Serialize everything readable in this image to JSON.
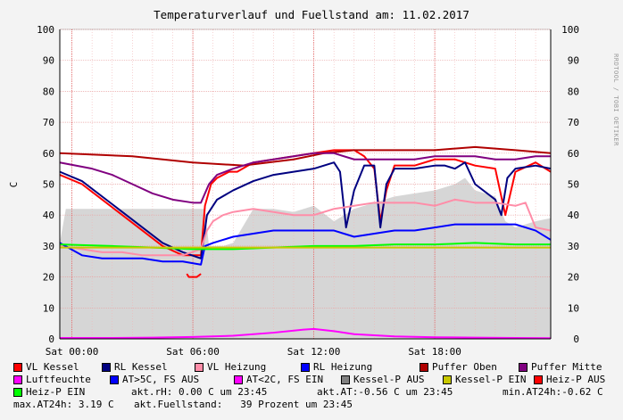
{
  "chart_data": {
    "type": "line",
    "title": "Temperaturverlauf und Fuellstand am: 11.02.2017",
    "ylabel": "C",
    "watermark": "RRDTOOL / TOBI OETIKER",
    "ylim": [
      0,
      100
    ],
    "yticks": [
      0,
      10,
      20,
      30,
      40,
      50,
      60,
      70,
      80,
      90,
      100
    ],
    "xlim": [
      -0.6,
      23.75
    ],
    "xticks": [
      {
        "label": "Sat 00:00",
        "h": 0
      },
      {
        "label": "Sat 06:00",
        "h": 6
      },
      {
        "label": "Sat 12:00",
        "h": 12
      },
      {
        "label": "Sat 18:00",
        "h": 18
      }
    ],
    "grid": true,
    "legend_position": "bottom",
    "area_series": {
      "name": "Fuellstand",
      "color": "#d6d6d6",
      "x": [
        -0.6,
        -0.3,
        5,
        6.6,
        6.8,
        7.5,
        8,
        9,
        10,
        11,
        12,
        13,
        14,
        15,
        16,
        17,
        18,
        19,
        19.5,
        20,
        21,
        21.5,
        22,
        23,
        23.75
      ],
      "y": [
        31,
        42,
        42,
        42,
        30,
        30,
        31,
        42,
        42,
        41,
        43,
        38,
        42,
        44,
        46,
        47,
        48,
        50,
        52,
        48,
        46,
        38,
        36,
        38,
        39
      ]
    },
    "series": [
      {
        "name": "VL Kessel",
        "color": "#ff0000",
        "x": [
          -0.6,
          0.5,
          1.5,
          2.5,
          3.5,
          4.5,
          5.5,
          6.4,
          6.6,
          6.9,
          7.2,
          7.8,
          8.2,
          9,
          10,
          11,
          12,
          13,
          14,
          14.5,
          15,
          15.3,
          15.6,
          16,
          17,
          18,
          19,
          20,
          21,
          21.5,
          22,
          23,
          23.75
        ],
        "y": [
          53,
          50,
          45,
          40,
          35,
          30,
          27,
          27,
          43,
          50,
          52,
          54,
          54,
          57,
          58,
          59,
          60,
          61,
          61,
          59,
          55,
          38,
          48,
          56,
          56,
          58,
          58,
          56,
          55,
          40,
          54,
          57,
          54
        ]
      },
      {
        "name": "RL Kessel",
        "color": "#000080",
        "x": [
          -0.6,
          0.5,
          1.5,
          2.5,
          3.5,
          4.5,
          5.5,
          6.4,
          6.7,
          7.2,
          8,
          9,
          10,
          11,
          12,
          12.5,
          13,
          13.3,
          13.6,
          14,
          14.5,
          15,
          15.3,
          15.6,
          16,
          17,
          18,
          18.5,
          19,
          19.5,
          20,
          21,
          21.3,
          21.6,
          22,
          23,
          23.75
        ],
        "y": [
          54,
          51,
          46,
          41,
          36,
          31,
          28,
          26,
          40,
          45,
          48,
          51,
          53,
          54,
          55,
          56,
          57,
          54,
          36,
          48,
          56,
          56,
          36,
          50,
          55,
          55,
          56,
          56,
          55,
          57,
          50,
          45,
          40,
          52,
          55,
          56,
          55
        ]
      },
      {
        "name": "VL Heizung",
        "color": "#ff8da8",
        "x": [
          -0.6,
          0.5,
          1.5,
          2.5,
          3.5,
          4.5,
          5.5,
          6.4,
          6.7,
          7,
          7.5,
          8,
          9,
          10,
          11,
          12,
          13,
          14,
          15,
          16,
          17,
          18,
          19,
          20,
          21,
          22,
          22.5,
          23,
          23.75
        ],
        "y": [
          30,
          29,
          28,
          28,
          27,
          27,
          27,
          29,
          35,
          38,
          40,
          41,
          42,
          41,
          40,
          40,
          42,
          43,
          44,
          44,
          44,
          43,
          45,
          44,
          44,
          43,
          44,
          36,
          35
        ]
      },
      {
        "name": "RL Heizung",
        "color": "#0000ff",
        "x": [
          -0.6,
          0.5,
          1.5,
          2.5,
          3.5,
          4.5,
          5.5,
          6.4,
          6.6,
          7,
          7.5,
          8,
          9,
          10,
          11,
          12,
          13,
          14,
          15,
          16,
          17,
          18,
          19,
          20,
          21,
          22,
          23,
          23.75
        ],
        "y": [
          31,
          27,
          26,
          26,
          26,
          25,
          25,
          24,
          30,
          31,
          32,
          33,
          34,
          35,
          35,
          35,
          35,
          33,
          34,
          35,
          35,
          36,
          37,
          37,
          37,
          37,
          35,
          32
        ]
      },
      {
        "name": "Puffer Oben",
        "color": "#b00000",
        "x": [
          -0.6,
          3,
          6,
          8.5,
          11,
          12.5,
          14,
          16,
          18,
          20,
          22,
          23.75
        ],
        "y": [
          60,
          59,
          57,
          56,
          58,
          60,
          61,
          61,
          61,
          62,
          61,
          60
        ]
      },
      {
        "name": "Puffer Mitte",
        "color": "#800080",
        "x": [
          -0.6,
          1,
          2,
          3,
          4,
          5,
          6,
          6.4,
          6.8,
          7.2,
          8,
          9,
          10,
          11,
          12,
          13,
          14,
          15,
          16,
          17,
          18,
          19,
          20,
          21,
          22,
          23,
          23.75
        ],
        "y": [
          57,
          55,
          53,
          50,
          47,
          45,
          44,
          44,
          50,
          53,
          55,
          57,
          58,
          59,
          60,
          60,
          58,
          58,
          58,
          58,
          59,
          59,
          59,
          58,
          58,
          59,
          59
        ]
      },
      {
        "name": "Luftfeuchte",
        "color": "#ff00ff",
        "x": [
          -0.6,
          2,
          4,
          6,
          8,
          10,
          11.5,
          12,
          13,
          14,
          16,
          18,
          20,
          22,
          23.75
        ],
        "y": [
          0.3,
          0.3,
          0.4,
          0.6,
          1.0,
          2.0,
          3.0,
          3.2,
          2.5,
          1.5,
          0.8,
          0.5,
          0.4,
          0.3,
          0.2
        ]
      },
      {
        "name": "Heiz-P EIN",
        "color": "#00ff00",
        "x": [
          -0.6,
          2,
          4,
          6,
          8,
          10,
          12,
          14,
          16,
          18,
          20,
          22,
          23.75
        ],
        "y": [
          30.5,
          30,
          29.5,
          29,
          29,
          29.5,
          30,
          30,
          30.5,
          30.5,
          31,
          30.5,
          30.5
        ]
      },
      {
        "name": "Kessel-P EIN",
        "color": "#c8c800",
        "x": [
          -0.6,
          4,
          8,
          12,
          16,
          20,
          23.75
        ],
        "y": [
          29.5,
          29.5,
          29.5,
          29.5,
          29.5,
          29.5,
          29.5
        ]
      },
      {
        "name": "Heiz-P AUS",
        "color": "#ff0000",
        "x": [
          5.7,
          5.8,
          6.2,
          6.4
        ],
        "y": [
          21,
          20,
          20,
          21
        ]
      }
    ],
    "legend_extra": [
      {
        "name": "AT>5C, FS AUS",
        "color": "#0000ff"
      },
      {
        "name": "AT<2C, FS EIN",
        "color": "#ff00ff"
      },
      {
        "name": "Kessel-P AUS",
        "color": "#808080"
      },
      {
        "name": "Kessel-P EIN",
        "color": "#c8c800"
      },
      {
        "name": "Heiz-P AUS",
        "color": "#ff0000"
      },
      {
        "name": "Heiz-P EIN",
        "color": "#00ff00"
      }
    ]
  },
  "stats": {
    "akt_rh": "akt.rH: 0.00 C um 23:45",
    "akt_at": "akt.AT:-0.56 C um 23:45",
    "min_at24h": "min.AT24h:-0.62 C",
    "max_at24h": "max.AT24h: 3.19 C",
    "akt_fuellstand": "akt.Fuellstand:   39 Prozent um 23:45"
  }
}
